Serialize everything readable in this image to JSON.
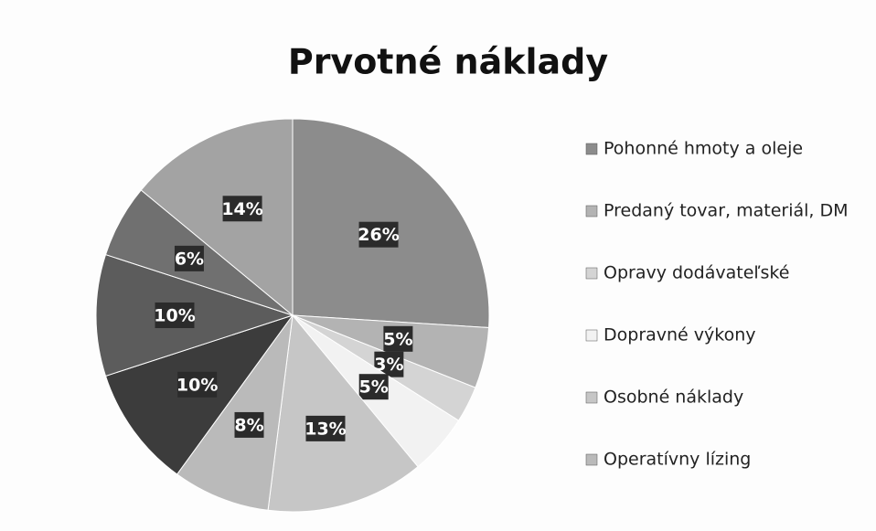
{
  "chart_data": {
    "type": "pie",
    "title": "Prvotné náklady",
    "categories": [
      "Pohonné hmoty a oleje",
      "Predaný tovar, materiál, DM",
      "Opravy dodávateľské",
      "Dopravné výkony",
      "Osobné náklady",
      "Operatívny lízing",
      null,
      null,
      null,
      null
    ],
    "values": [
      26,
      5,
      3,
      5,
      13,
      8,
      10,
      10,
      6,
      14
    ],
    "value_labels": [
      "26%",
      "5%",
      "3%",
      "5%",
      "13%",
      "8%",
      "10%",
      "10%",
      "6%",
      "14%"
    ],
    "colors": [
      "#8c8c8c",
      "#b3b3b3",
      "#d4d4d4",
      "#f2f2f2",
      "#c6c6c6",
      "#bababa",
      "#3c3c3c",
      "#5c5c5c",
      "#707070",
      "#a3a3a3"
    ],
    "legend": "right"
  }
}
